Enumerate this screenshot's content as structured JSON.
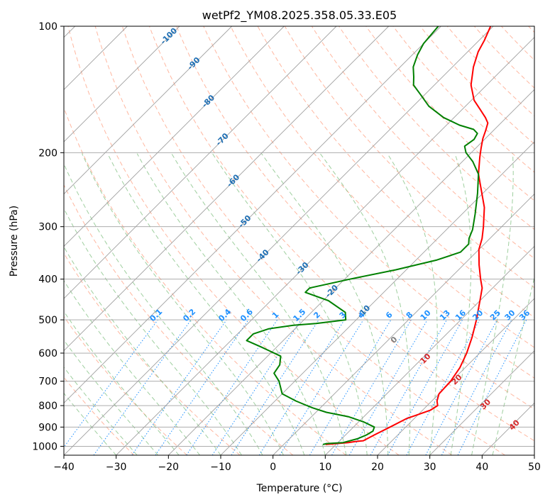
{
  "chart_data": {
    "type": "line",
    "title": "wetPf2_YM08.2025.358.05.33.E05",
    "xlabel": "Temperature (°C)",
    "ylabel": "Pressure (hPa)",
    "xlim": [
      -40,
      50
    ],
    "ylim_hpa": [
      1050,
      100
    ],
    "x_ticks": [
      -40,
      -30,
      -20,
      -10,
      0,
      10,
      20,
      30,
      40,
      50
    ],
    "y_ticks": [
      1000,
      900,
      800,
      700,
      600,
      500,
      400,
      300,
      200,
      100
    ],
    "grid": true,
    "colors": {
      "temperature": "#ff0000",
      "dewpoint": "#008000",
      "isotherm": "#a0a0a0",
      "dry_adiabat": "#ff9f80",
      "moist_adiabat": "#7fbf7f",
      "mixing_ratio": "#1e90ff",
      "isotherm_label": "#1f6fb4",
      "mixing_ratio_label": "#1e90ff",
      "moist_label": "#d62728",
      "zero_label": "#808080",
      "tan_curve": "#d2b48c"
    },
    "series": [
      {
        "name": "Temperature",
        "points": [
          [
            8,
            990
          ],
          [
            12,
            980
          ],
          [
            13,
            975
          ],
          [
            14.5,
            970
          ],
          [
            15.5,
            940
          ],
          [
            17,
            900
          ],
          [
            18.5,
            860
          ],
          [
            20,
            840
          ],
          [
            21.5,
            820
          ],
          [
            22,
            800
          ],
          [
            21,
            780
          ],
          [
            20,
            750
          ],
          [
            19.8,
            700
          ],
          [
            19,
            650
          ],
          [
            17.5,
            600
          ],
          [
            15.5,
            550
          ],
          [
            13,
            500
          ],
          [
            10,
            450
          ],
          [
            8,
            420
          ],
          [
            6,
            400
          ],
          [
            3,
            370
          ],
          [
            0,
            340
          ],
          [
            -1.5,
            320
          ],
          [
            -3.5,
            300
          ],
          [
            -7,
            270
          ],
          [
            -11,
            245
          ],
          [
            -14.5,
            225
          ],
          [
            -17.5,
            205
          ],
          [
            -19,
            195
          ],
          [
            -20.5,
            185
          ],
          [
            -21.5,
            177
          ],
          [
            -22.5,
            170
          ],
          [
            -24,
            165
          ],
          [
            -26.5,
            158
          ],
          [
            -29.5,
            150
          ],
          [
            -33,
            138
          ],
          [
            -36,
            125
          ],
          [
            -38,
            115
          ],
          [
            -39,
            108
          ],
          [
            -40.5,
            100
          ]
        ]
      },
      {
        "name": "Dewpoint",
        "points": [
          [
            7.5,
            990
          ],
          [
            8,
            985
          ],
          [
            11,
            980
          ],
          [
            13,
            960
          ],
          [
            14,
            940
          ],
          [
            14.5,
            920
          ],
          [
            14,
            900
          ],
          [
            11,
            875
          ],
          [
            7,
            850
          ],
          [
            2,
            830
          ],
          [
            -1.5,
            810
          ],
          [
            -3,
            800
          ],
          [
            -6,
            780
          ],
          [
            -10,
            750
          ],
          [
            -13,
            700
          ],
          [
            -15.5,
            670
          ],
          [
            -16,
            640
          ],
          [
            -17.5,
            610
          ],
          [
            -23,
            580
          ],
          [
            -27,
            560
          ],
          [
            -27,
            540
          ],
          [
            -25,
            525
          ],
          [
            -21,
            515
          ],
          [
            -17,
            510
          ],
          [
            -12,
            500
          ],
          [
            -13.5,
            480
          ],
          [
            -19,
            450
          ],
          [
            -25,
            430
          ],
          [
            -25,
            420
          ],
          [
            -19,
            400
          ],
          [
            -12,
            380
          ],
          [
            -6,
            360
          ],
          [
            -3,
            345
          ],
          [
            -3,
            330
          ],
          [
            -4,
            320
          ],
          [
            -5,
            305
          ],
          [
            -7.5,
            280
          ],
          [
            -11,
            250
          ],
          [
            -14.5,
            225
          ],
          [
            -18,
            210
          ],
          [
            -21,
            200
          ],
          [
            -22.5,
            193
          ],
          [
            -22,
            186
          ],
          [
            -22.5,
            180
          ],
          [
            -24,
            176
          ],
          [
            -27.5,
            172
          ],
          [
            -32,
            165
          ],
          [
            -37,
            155
          ],
          [
            -41,
            145
          ],
          [
            -44,
            138
          ],
          [
            -45.5,
            132
          ],
          [
            -47.5,
            125
          ],
          [
            -49,
            117
          ],
          [
            -50,
            110
          ],
          [
            -50.5,
            100
          ]
        ]
      }
    ],
    "isotherm_labels": [
      "-100",
      "-90",
      "-80",
      "-70",
      "-60",
      "-50",
      "-40",
      "-30",
      "-20",
      "-10"
    ],
    "isotherm_label_values": [
      -100,
      -90,
      -80,
      -70,
      -60,
      -50,
      -40,
      -30,
      -20,
      -10
    ],
    "mixing_ratio_labels": [
      "0.1",
      "0.2",
      "0.4",
      "0.6",
      "1",
      "1.5",
      "2",
      "3",
      "4",
      "6",
      "8",
      "10",
      "13",
      "16",
      "20",
      "25",
      "30",
      "36"
    ],
    "mixing_ratio_values": [
      0.1,
      0.2,
      0.4,
      0.6,
      1,
      1.5,
      2,
      3,
      4,
      6,
      8,
      10,
      13,
      16,
      20,
      25,
      30,
      36
    ],
    "moist_labels": [
      "0",
      "10",
      "20",
      "30",
      "40"
    ],
    "moist_label_values": [
      0,
      10,
      20,
      30,
      40
    ]
  }
}
